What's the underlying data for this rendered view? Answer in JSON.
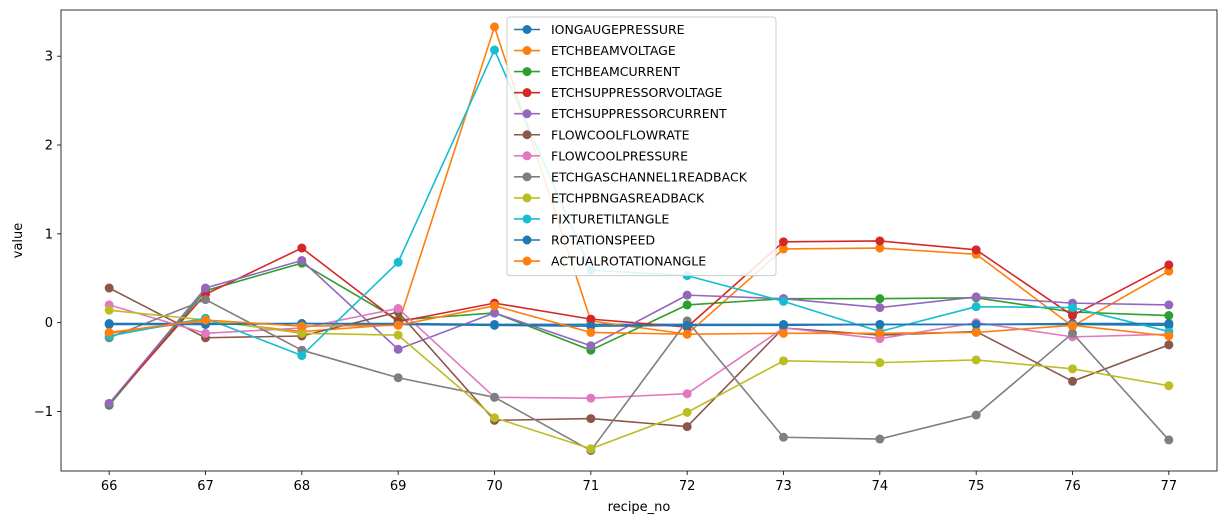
{
  "chart_data": {
    "type": "line",
    "title": "",
    "xlabel": "recipe_no",
    "ylabel": "value",
    "x": [
      66,
      67,
      68,
      69,
      70,
      71,
      72,
      73,
      74,
      75,
      76,
      77
    ],
    "xlim": [
      65.5,
      77.5
    ],
    "ylim": [
      -1.67,
      3.52
    ],
    "yticks": [
      -1,
      0,
      1,
      2,
      3
    ],
    "ytick_labels": [
      "−1",
      "0",
      "1",
      "2",
      "3"
    ],
    "grid": false,
    "legend_position": "top-center",
    "markers": true,
    "series": [
      {
        "name": "IONGAUGEPRESSURE",
        "color": "#1f77b4",
        "values": [
          -0.01,
          -0.01,
          -0.01,
          -0.01,
          -0.02,
          -0.02,
          -0.02,
          -0.02,
          -0.02,
          -0.02,
          -0.02,
          -0.03
        ]
      },
      {
        "name": "ETCHBEAMVOLTAGE",
        "color": "#ff7f0e",
        "values": [
          -0.12,
          0.02,
          -0.1,
          -0.02,
          3.33,
          0.02,
          -0.13,
          0.83,
          0.84,
          0.77,
          -0.04,
          0.58
        ]
      },
      {
        "name": "ETCHBEAMCURRENT",
        "color": "#2ca02c",
        "values": [
          -0.93,
          0.36,
          0.67,
          0.03,
          0.11,
          -0.31,
          0.2,
          0.27,
          0.27,
          0.28,
          0.12,
          0.08
        ]
      },
      {
        "name": "ETCHSUPPRESSORVOLTAGE",
        "color": "#d62728",
        "values": [
          -0.91,
          0.32,
          0.84,
          0.01,
          0.22,
          0.04,
          -0.05,
          0.91,
          0.92,
          0.82,
          0.08,
          0.65
        ]
      },
      {
        "name": "ETCHSUPPRESSORCURRENT",
        "color": "#9467bd",
        "values": [
          -0.91,
          0.39,
          0.7,
          -0.3,
          0.11,
          -0.26,
          0.31,
          0.27,
          0.17,
          0.29,
          0.22,
          0.2
        ]
      },
      {
        "name": "FLOWCOOLFLOWRATE",
        "color": "#8c564b",
        "values": [
          0.39,
          -0.17,
          -0.15,
          0.12,
          -1.1,
          -1.08,
          -1.17,
          -0.06,
          -0.14,
          -0.1,
          -0.66,
          -0.25
        ]
      },
      {
        "name": "FLOWCOOLPRESSURE",
        "color": "#e377c2",
        "values": [
          0.2,
          -0.12,
          -0.06,
          0.16,
          -0.84,
          -0.85,
          -0.8,
          -0.06,
          -0.18,
          0.0,
          -0.16,
          -0.13
        ]
      },
      {
        "name": "ETCHGASCHANNEL1READBACK",
        "color": "#7f7f7f",
        "values": [
          -0.17,
          0.26,
          -0.31,
          -0.62,
          -0.84,
          -1.44,
          0.02,
          -1.29,
          -1.31,
          -1.04,
          -0.12,
          -1.32
        ]
      },
      {
        "name": "ETCHPBNGASREADBACK",
        "color": "#bcbd22",
        "values": [
          0.14,
          0.03,
          -0.12,
          -0.14,
          -1.07,
          -1.42,
          -1.01,
          -0.43,
          -0.45,
          -0.42,
          -0.52,
          -0.71
        ]
      },
      {
        "name": "FIXTURETILTANGLE",
        "color": "#17becf",
        "values": [
          -0.15,
          0.05,
          -0.37,
          0.68,
          3.07,
          0.59,
          0.53,
          0.24,
          -0.1,
          0.18,
          0.17,
          -0.1
        ]
      },
      {
        "name": "ROTATIONSPEED",
        "color": "#1f77b4",
        "values": [
          -0.02,
          -0.02,
          -0.01,
          -0.02,
          -0.03,
          -0.04,
          -0.03,
          -0.03,
          -0.02,
          -0.02,
          -0.01,
          -0.01
        ]
      },
      {
        "name": "ACTUALROTATIONANGLE",
        "color": "#ff7f0e",
        "values": [
          -0.11,
          0.03,
          -0.04,
          -0.03,
          0.19,
          -0.11,
          -0.13,
          -0.12,
          -0.12,
          -0.11,
          -0.03,
          -0.15
        ]
      }
    ]
  }
}
